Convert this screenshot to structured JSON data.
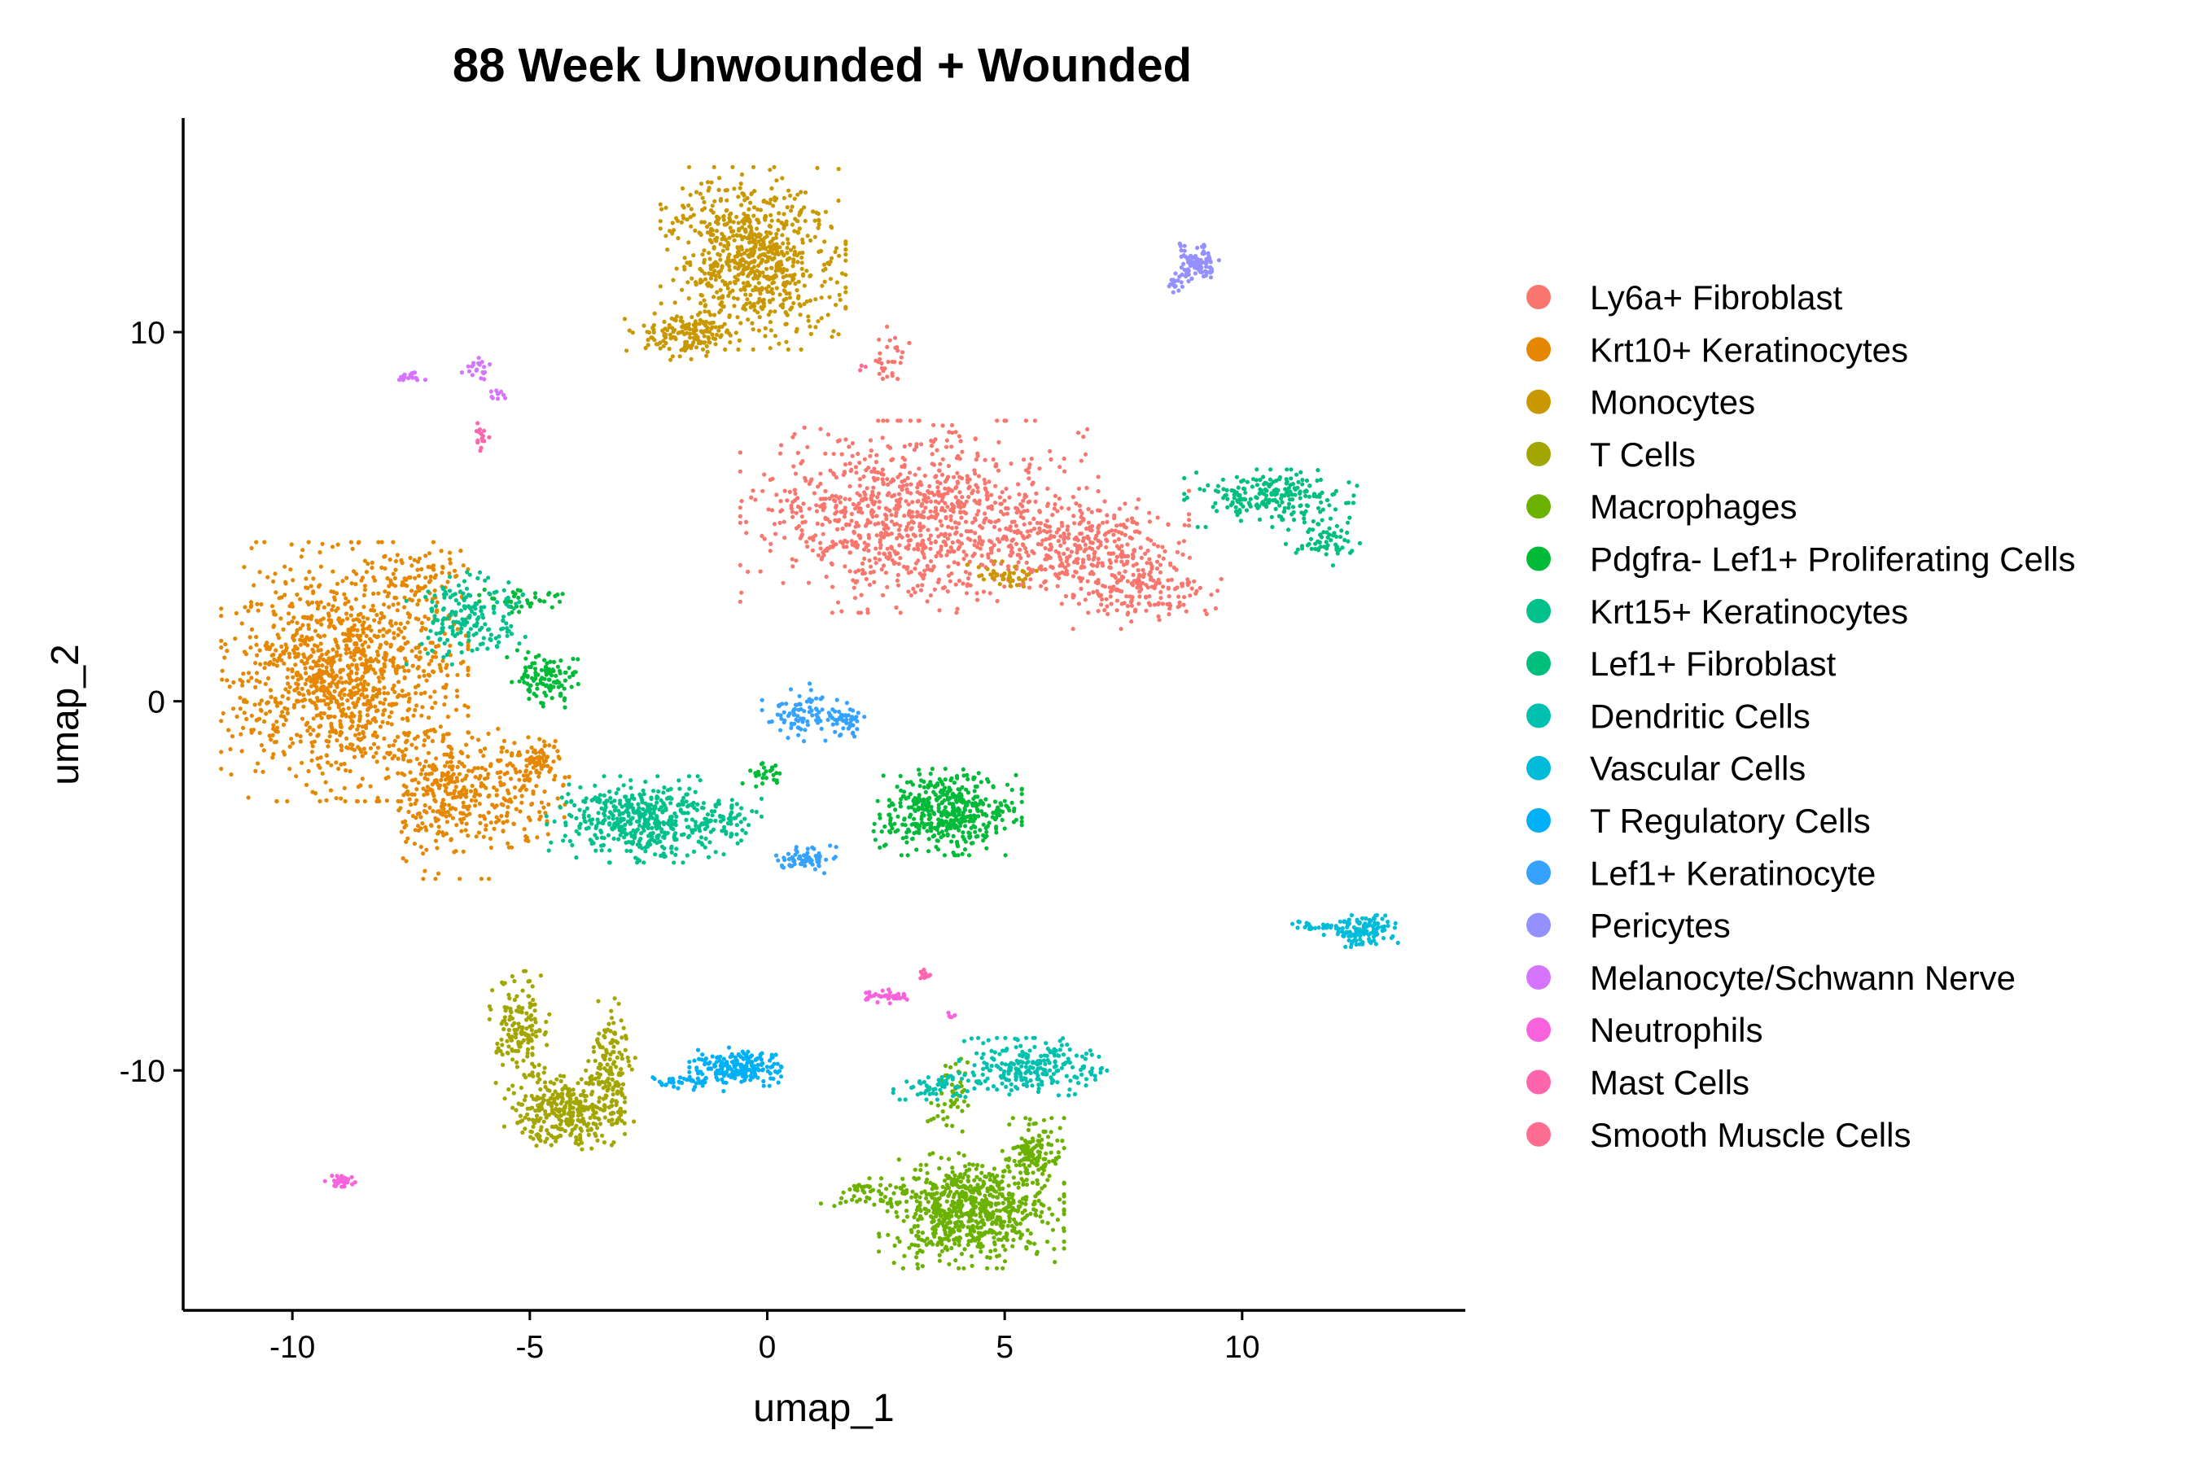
{
  "chart_data": {
    "type": "scatter",
    "title": "88 Week Unwounded + Wounded",
    "xlabel": "umap_1",
    "ylabel": "umap_2",
    "xlim": [
      -12.3,
      14.7
    ],
    "ylim": [
      -16.5,
      15.8
    ],
    "xticks": [
      {
        "value": -10,
        "label": "-10"
      },
      {
        "value": -5,
        "label": "-5"
      },
      {
        "value": 0,
        "label": "0"
      },
      {
        "value": 5,
        "label": "5"
      },
      {
        "value": 10,
        "label": "10"
      }
    ],
    "yticks": [
      {
        "value": 10,
        "label": "10"
      },
      {
        "value": 0,
        "label": "0"
      },
      {
        "value": -10,
        "label": "-10"
      }
    ],
    "legend_position": "right",
    "series": [
      {
        "name": "Ly6a+ Fibroblast",
        "color": "#F8766D",
        "clusters": [
          {
            "cx": 3.2,
            "cy": 5.0,
            "rx": 2.9,
            "ry": 2.0,
            "n": 1000
          },
          {
            "cx": 6.8,
            "cy": 4.2,
            "rx": 1.6,
            "ry": 1.2,
            "n": 300
          },
          {
            "cx": 8.0,
            "cy": 3.0,
            "rx": 1.2,
            "ry": 0.8,
            "n": 150
          },
          {
            "cx": 2.6,
            "cy": 9.3,
            "rx": 0.3,
            "ry": 0.7,
            "n": 30
          }
        ]
      },
      {
        "name": "Krt10+ Keratinocytes",
        "color": "#E58700",
        "clusters": [
          {
            "cx": -8.9,
            "cy": 0.8,
            "rx": 2.0,
            "ry": 2.7,
            "n": 1150
          },
          {
            "cx": -7.3,
            "cy": 3.3,
            "rx": 0.9,
            "ry": 0.6,
            "n": 80
          },
          {
            "cx": -6.8,
            "cy": -2.6,
            "rx": 1.0,
            "ry": 1.7,
            "n": 280
          },
          {
            "cx": -5.3,
            "cy": -2.4,
            "rx": 0.8,
            "ry": 1.2,
            "n": 140
          },
          {
            "cx": -4.8,
            "cy": -1.6,
            "rx": 0.5,
            "ry": 0.4,
            "n": 60
          }
        ]
      },
      {
        "name": "Monocytes",
        "color": "#C99800",
        "clusters": [
          {
            "cx": -0.3,
            "cy": 12.0,
            "rx": 1.5,
            "ry": 1.9,
            "n": 750
          },
          {
            "cx": -1.7,
            "cy": 9.9,
            "rx": 1.0,
            "ry": 0.5,
            "n": 150
          },
          {
            "cx": 5.0,
            "cy": 3.4,
            "rx": 0.6,
            "ry": 0.3,
            "n": 40
          }
        ]
      },
      {
        "name": "T Cells",
        "color": "#A3A500",
        "clusters": [
          {
            "cx": -5.2,
            "cy": -9.0,
            "rx": 0.5,
            "ry": 1.3,
            "n": 150
          },
          {
            "cx": -4.3,
            "cy": -11.1,
            "rx": 1.0,
            "ry": 0.8,
            "n": 300
          },
          {
            "cx": -3.3,
            "cy": -10.0,
            "rx": 0.4,
            "ry": 1.5,
            "n": 150
          }
        ]
      },
      {
        "name": "Macrophages",
        "color": "#6BB100",
        "clusters": [
          {
            "cx": 4.3,
            "cy": -13.8,
            "rx": 1.5,
            "ry": 1.2,
            "n": 700
          },
          {
            "cx": 5.6,
            "cy": -12.2,
            "rx": 0.5,
            "ry": 0.7,
            "n": 120
          },
          {
            "cx": 2.3,
            "cy": -13.3,
            "rx": 0.9,
            "ry": 0.3,
            "n": 60
          },
          {
            "cx": 3.9,
            "cy": -10.7,
            "rx": 0.4,
            "ry": 0.8,
            "n": 50
          }
        ]
      },
      {
        "name": "Pdgfra- Lef1+ Proliferating Cells",
        "color": "#00BA38",
        "clusters": [
          {
            "cx": 3.8,
            "cy": -3.0,
            "rx": 1.2,
            "ry": 0.9,
            "n": 450
          },
          {
            "cx": -4.7,
            "cy": 0.6,
            "rx": 0.6,
            "ry": 0.6,
            "n": 110
          },
          {
            "cx": -5.2,
            "cy": 2.7,
            "rx": 0.8,
            "ry": 0.3,
            "n": 40
          },
          {
            "cx": 0.0,
            "cy": -2.0,
            "rx": 0.4,
            "ry": 0.3,
            "n": 25
          }
        ]
      },
      {
        "name": "Krt15+ Keratinocytes",
        "color": "#00C08B",
        "clusters": [
          {
            "cx": -2.7,
            "cy": -3.2,
            "rx": 1.5,
            "ry": 0.9,
            "n": 450
          },
          {
            "cx": -6.3,
            "cy": 2.3,
            "rx": 1.0,
            "ry": 1.0,
            "n": 180
          },
          {
            "cx": -0.9,
            "cy": -3.2,
            "rx": 0.6,
            "ry": 0.5,
            "n": 60
          }
        ]
      },
      {
        "name": "Lef1+ Fibroblast",
        "color": "#00BF7D",
        "clusters": [
          {
            "cx": 10.6,
            "cy": 5.5,
            "rx": 1.4,
            "ry": 0.6,
            "n": 220
          },
          {
            "cx": 11.7,
            "cy": 4.3,
            "rx": 0.6,
            "ry": 0.5,
            "n": 60
          }
        ]
      },
      {
        "name": "Dendritic Cells",
        "color": "#00C0AF",
        "clusters": [
          {
            "cx": 5.6,
            "cy": -9.9,
            "rx": 1.2,
            "ry": 0.6,
            "n": 240
          },
          {
            "cx": 3.5,
            "cy": -10.4,
            "rx": 0.8,
            "ry": 0.3,
            "n": 60
          }
        ]
      },
      {
        "name": "Vascular Cells",
        "color": "#00BCD8",
        "clusters": [
          {
            "cx": 12.5,
            "cy": -6.2,
            "rx": 0.6,
            "ry": 0.35,
            "n": 120
          },
          {
            "cx": 11.5,
            "cy": -6.1,
            "rx": 0.5,
            "ry": 0.1,
            "n": 25
          }
        ]
      },
      {
        "name": "T Regulatory Cells",
        "color": "#00B0F6",
        "clusters": [
          {
            "cx": -0.6,
            "cy": -9.9,
            "rx": 0.8,
            "ry": 0.4,
            "n": 200
          },
          {
            "cx": -1.7,
            "cy": -10.3,
            "rx": 0.6,
            "ry": 0.2,
            "n": 40
          }
        ]
      },
      {
        "name": "Lef1+ Keratinocyte",
        "color": "#35A2FF",
        "clusters": [
          {
            "cx": 0.8,
            "cy": -0.3,
            "rx": 0.7,
            "ry": 0.6,
            "n": 100
          },
          {
            "cx": 0.8,
            "cy": -4.3,
            "rx": 0.5,
            "ry": 0.3,
            "n": 70
          },
          {
            "cx": 1.7,
            "cy": -0.6,
            "rx": 0.3,
            "ry": 0.3,
            "n": 30
          }
        ]
      },
      {
        "name": "Pericytes",
        "color": "#9590FF",
        "clusters": [
          {
            "cx": 9.1,
            "cy": 11.9,
            "rx": 0.4,
            "ry": 0.4,
            "n": 100
          },
          {
            "cx": 8.6,
            "cy": 11.3,
            "rx": 0.2,
            "ry": 0.2,
            "n": 15
          }
        ]
      },
      {
        "name": "Melanocyte/Schwann Nerve",
        "color": "#D575FE",
        "clusters": [
          {
            "cx": -7.5,
            "cy": 8.8,
            "rx": 0.3,
            "ry": 0.1,
            "n": 20
          },
          {
            "cx": -6.1,
            "cy": 9.0,
            "rx": 0.3,
            "ry": 0.3,
            "n": 20
          },
          {
            "cx": -5.7,
            "cy": 8.3,
            "rx": 0.2,
            "ry": 0.2,
            "n": 10
          }
        ]
      },
      {
        "name": "Neutrophils",
        "color": "#F962DD",
        "clusters": [
          {
            "cx": 2.6,
            "cy": -8.0,
            "rx": 0.4,
            "ry": 0.15,
            "n": 40
          },
          {
            "cx": -9.0,
            "cy": -13.0,
            "rx": 0.25,
            "ry": 0.15,
            "n": 30
          },
          {
            "cx": 3.9,
            "cy": -8.5,
            "rx": 0.1,
            "ry": 0.1,
            "n": 5
          }
        ]
      },
      {
        "name": "Mast Cells",
        "color": "#FF65AC",
        "clusters": [
          {
            "cx": -6.0,
            "cy": 7.2,
            "rx": 0.15,
            "ry": 0.4,
            "n": 15
          },
          {
            "cx": 3.3,
            "cy": -7.4,
            "rx": 0.15,
            "ry": 0.1,
            "n": 10
          }
        ]
      },
      {
        "name": "Smooth Muscle Cells",
        "color": "#FF6C91",
        "clusters": [
          {
            "cx": 2.0,
            "cy": 9.0,
            "rx": 0.1,
            "ry": 0.1,
            "n": 3
          }
        ]
      }
    ]
  }
}
